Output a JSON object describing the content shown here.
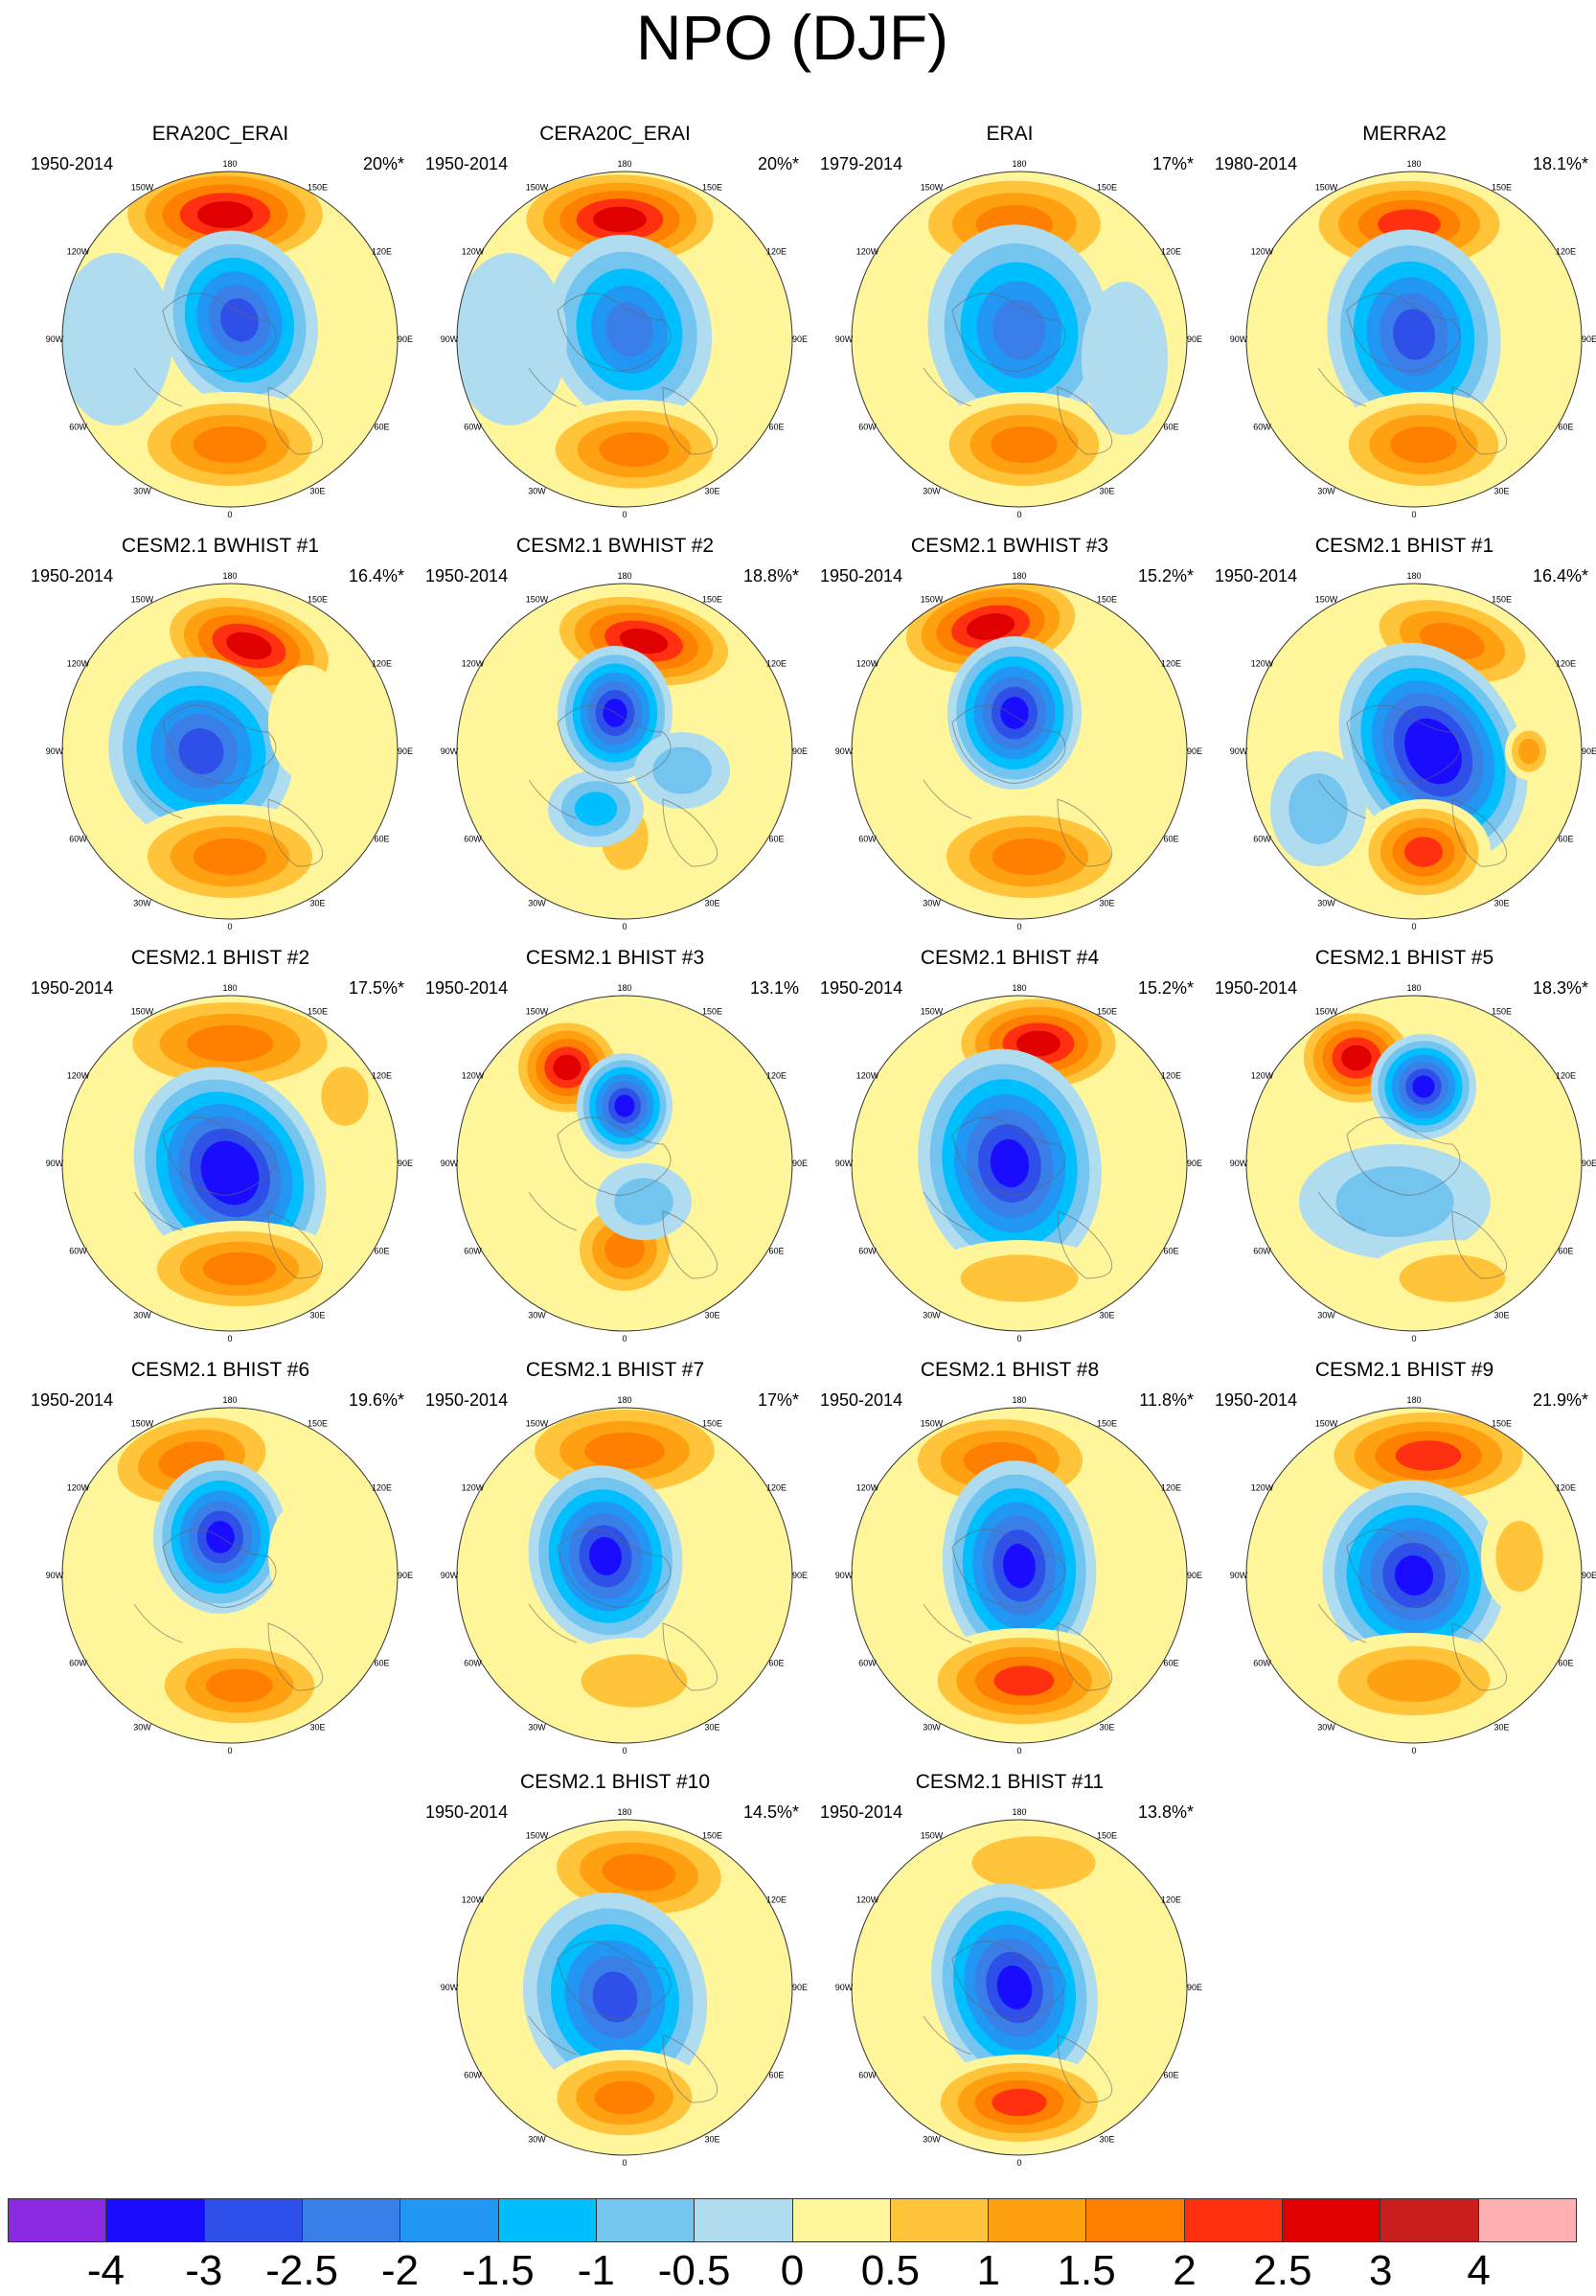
{
  "title": "NPO (DJF)",
  "panels": [
    {
      "title": "ERA20C_ERAI",
      "years": "1950-2014",
      "pct": "20%*"
    },
    {
      "title": "CERA20C_ERAI",
      "years": "1950-2014",
      "pct": "20%*"
    },
    {
      "title": "ERAI",
      "years": "1979-2014",
      "pct": "17%*"
    },
    {
      "title": "MERRA2",
      "years": "1980-2014",
      "pct": "18.1%*"
    },
    {
      "title": "CESM2.1 BWHIST #1",
      "years": "1950-2014",
      "pct": "16.4%*"
    },
    {
      "title": "CESM2.1 BWHIST #2",
      "years": "1950-2014",
      "pct": "18.8%*"
    },
    {
      "title": "CESM2.1 BWHIST #3",
      "years": "1950-2014",
      "pct": "15.2%*"
    },
    {
      "title": "CESM2.1 BHIST #1",
      "years": "1950-2014",
      "pct": "16.4%*"
    },
    {
      "title": "CESM2.1 BHIST #2",
      "years": "1950-2014",
      "pct": "17.5%*"
    },
    {
      "title": "CESM2.1 BHIST #3",
      "years": "1950-2014",
      "pct": "13.1%"
    },
    {
      "title": "CESM2.1 BHIST #4",
      "years": "1950-2014",
      "pct": "15.2%*"
    },
    {
      "title": "CESM2.1 BHIST #5",
      "years": "1950-2014",
      "pct": "18.3%*"
    },
    {
      "title": "CESM2.1 BHIST #6",
      "years": "1950-2014",
      "pct": "19.6%*"
    },
    {
      "title": "CESM2.1 BHIST #7",
      "years": "1950-2014",
      "pct": "17%*"
    },
    {
      "title": "CESM2.1 BHIST #8",
      "years": "1950-2014",
      "pct": "11.8%*"
    },
    {
      "title": "CESM2.1 BHIST #9",
      "years": "1950-2014",
      "pct": "21.9%*"
    },
    {
      "title": "CESM2.1 BHIST #10",
      "years": "1950-2014",
      "pct": "14.5%*"
    },
    {
      "title": "CESM2.1 BHIST #11",
      "years": "1950-2014",
      "pct": "13.8%*"
    }
  ],
  "lon_labels": [
    "180",
    "150E",
    "120E",
    "90E",
    "60E",
    "30E",
    "0",
    "30W",
    "60W",
    "90W",
    "120W",
    "150W"
  ],
  "colorbar": {
    "colors": [
      "#8a2be2",
      "#1a0dff",
      "#2e4fe8",
      "#3a7ee8",
      "#2196f3",
      "#00bfff",
      "#74c4f0",
      "#b0dcf0",
      "#fff59a",
      "#ffc43a",
      "#ffa010",
      "#ff7f00",
      "#ff3010",
      "#e00000",
      "#c81e1e",
      "#ffb0b0"
    ],
    "labels": [
      "-4",
      "-3",
      "-2.5",
      "-2",
      "-1.5",
      "-1",
      "-0.5",
      "0",
      "0.5",
      "1",
      "1.5",
      "2",
      "2.5",
      "3",
      "4"
    ]
  }
}
